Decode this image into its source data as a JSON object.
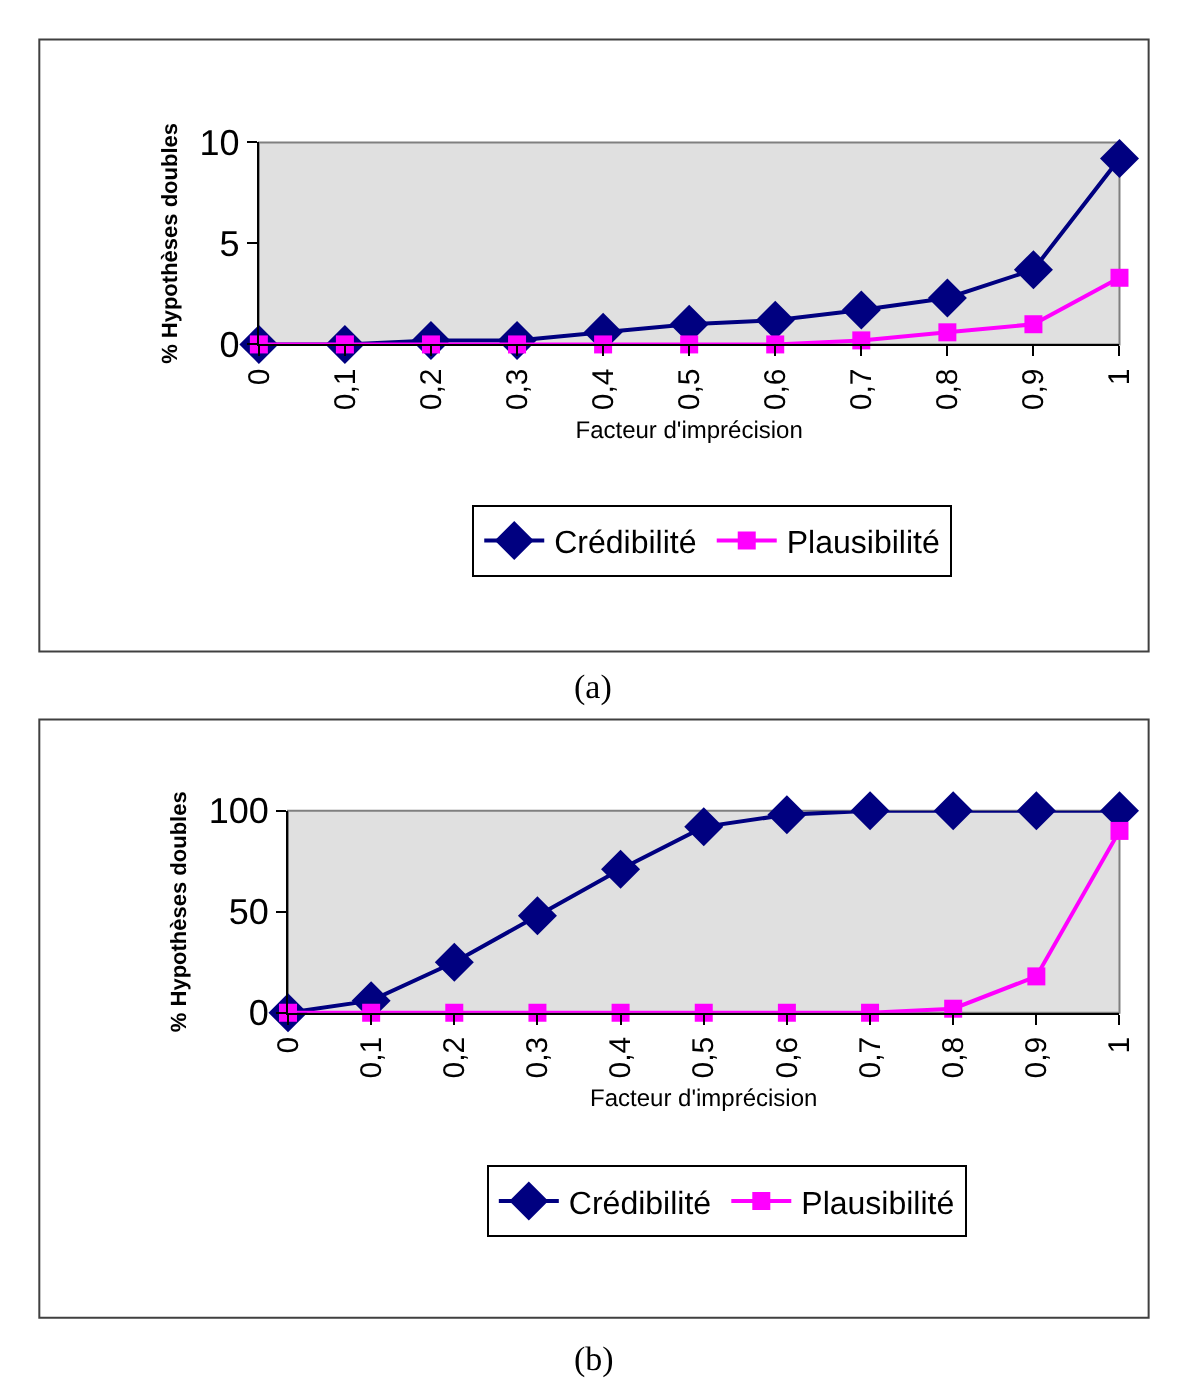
{
  "chart_data": [
    {
      "type": "line",
      "categories": [
        "0",
        "0,1",
        "0,2",
        "0,3",
        "0,4",
        "0,5",
        "0,6",
        "0,7",
        "0,8",
        "0,9",
        "1"
      ],
      "xlabel": "Facteur d'imprécision",
      "ylabel": "% Hypothèses doubles",
      "ylim": [
        0,
        10
      ],
      "yticks": [
        0,
        5,
        10
      ],
      "grid": false,
      "legend": "bottom",
      "annotations": [
        "(a)"
      ],
      "series": [
        {
          "name": "Crédibilité",
          "color": "#000080",
          "marker": "diamond",
          "values": [
            0,
            0,
            0.2,
            0.2,
            0.6,
            1,
            1.2,
            1.7,
            2.3,
            3.7,
            9.2
          ]
        },
        {
          "name": "Plausibilité",
          "color": "#ff00ff",
          "marker": "square",
          "values": [
            0,
            0,
            0,
            0,
            0,
            0,
            0,
            0.2,
            0.6,
            1,
            3.3
          ]
        }
      ]
    },
    {
      "type": "line",
      "categories": [
        "0",
        "0,1",
        "0,2",
        "0,3",
        "0,4",
        "0,5",
        "0,6",
        "0,7",
        "0,8",
        "0,9",
        "1"
      ],
      "xlabel": "Facteur d'imprécision",
      "ylabel": "% Hypothèses doubles",
      "ylim": [
        0,
        100
      ],
      "yticks": [
        0,
        50,
        100
      ],
      "grid": false,
      "legend": "bottom",
      "annotations": [
        "(b)"
      ],
      "series": [
        {
          "name": "Crédibilité",
          "color": "#000080",
          "marker": "diamond",
          "values": [
            0,
            6,
            25,
            48,
            71,
            92,
            98,
            100,
            100,
            100,
            100
          ]
        },
        {
          "name": "Plausibilité",
          "color": "#ff00ff",
          "marker": "square",
          "values": [
            0,
            0,
            0,
            0,
            0,
            0,
            0,
            0,
            2,
            18,
            90
          ]
        }
      ]
    }
  ]
}
